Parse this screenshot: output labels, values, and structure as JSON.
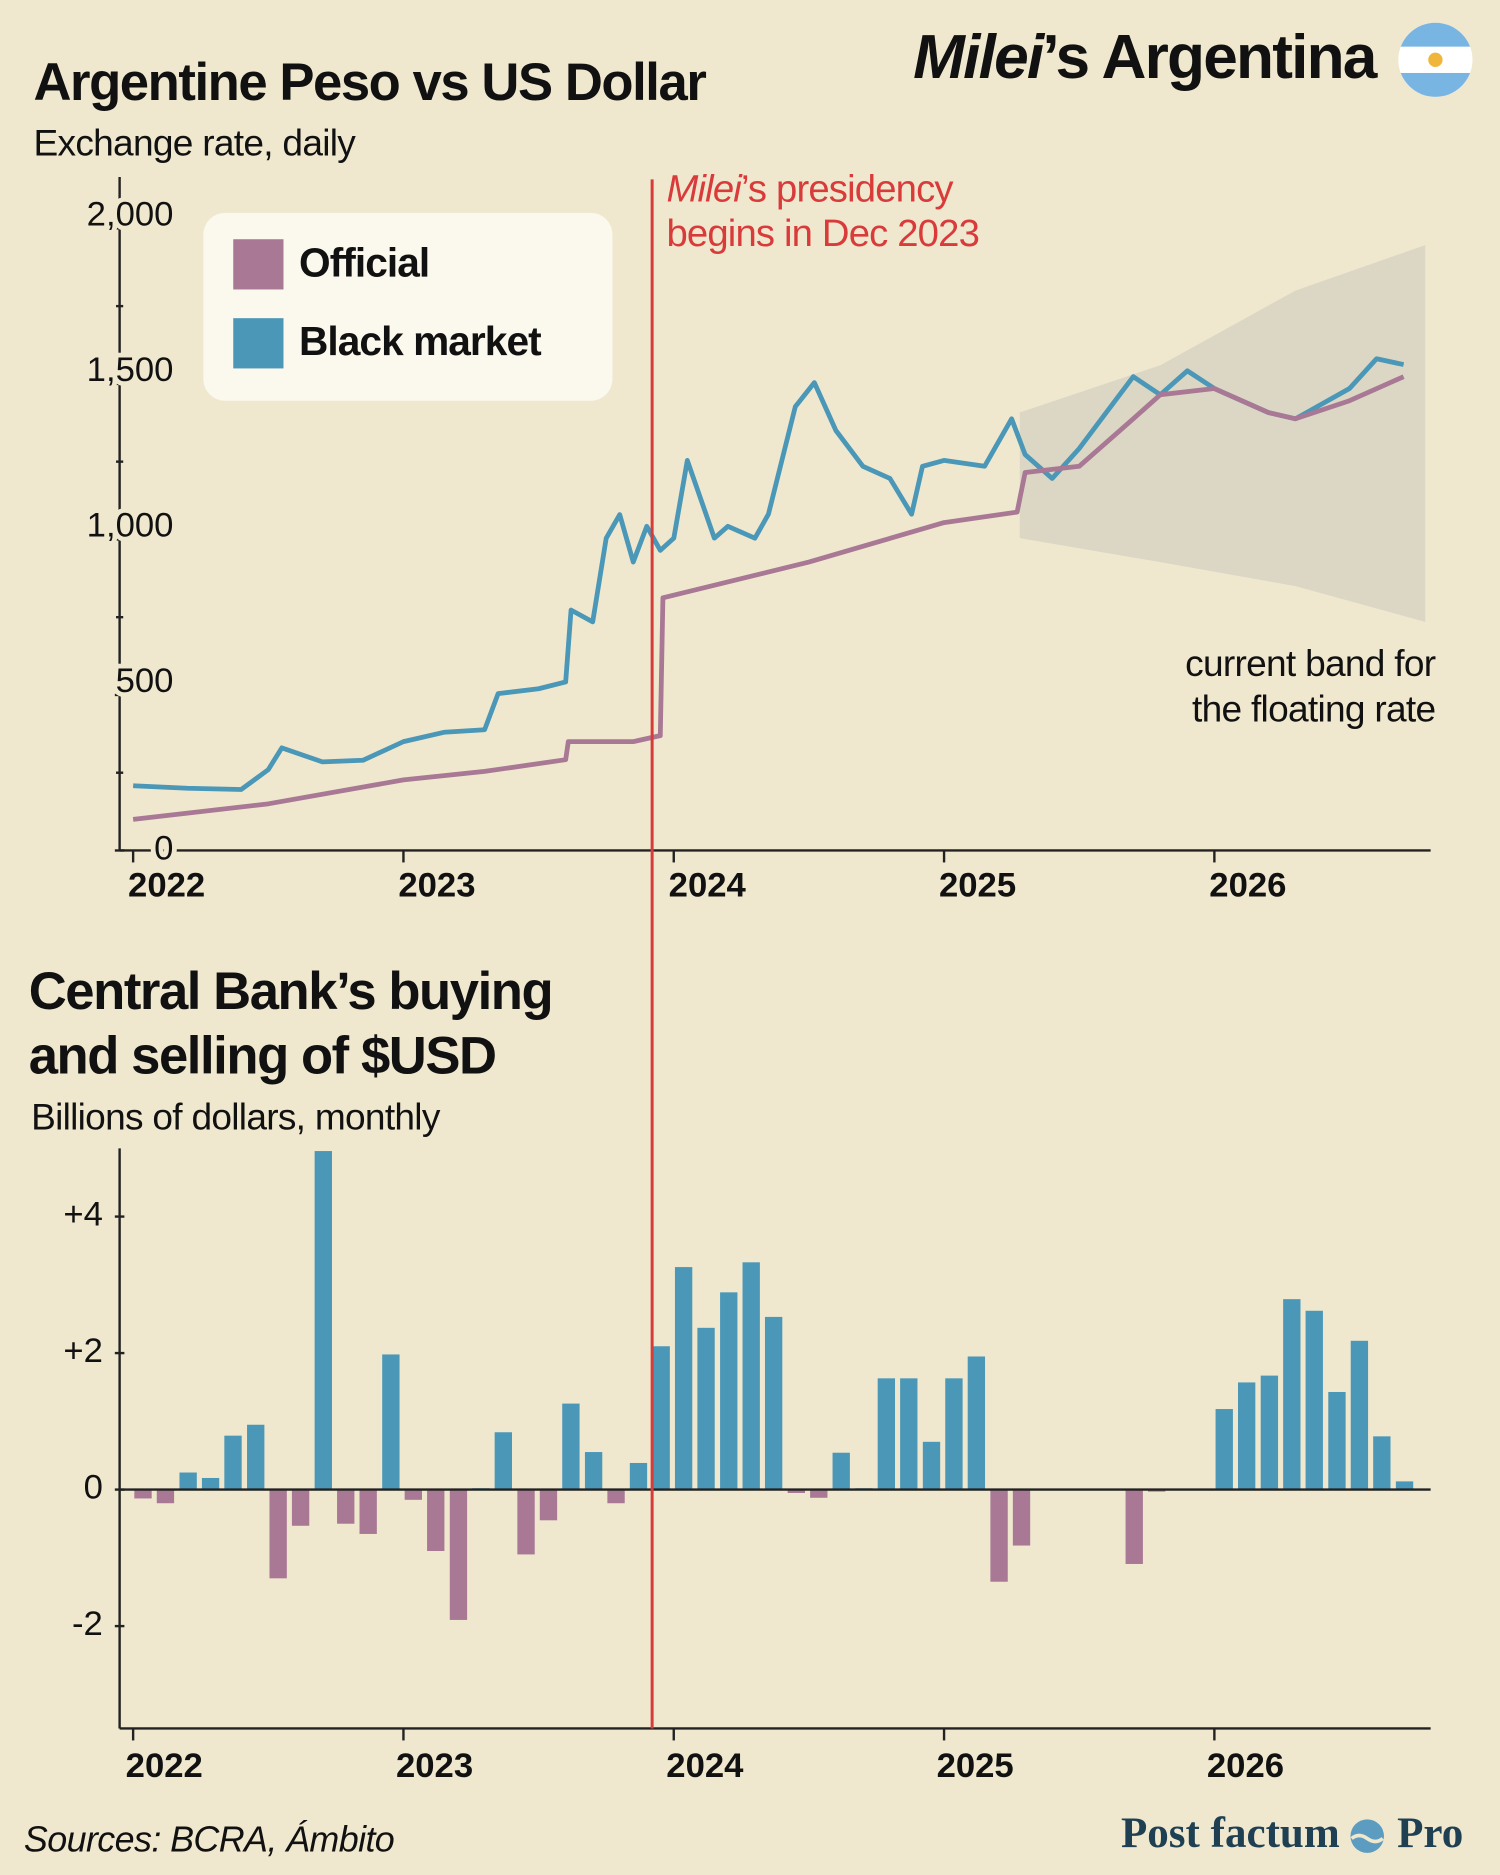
{
  "header": {
    "emphasis": "Milei",
    "rest": "’s Argentina"
  },
  "annotation": {
    "x": 2023.92,
    "emphasis": "Milei",
    "line1": "’s presidency",
    "line2": "begins in Dec 2023",
    "color": "#d93b3b"
  },
  "chart_data": [
    {
      "type": "line",
      "title": "Argentine Peso vs US Dollar",
      "subtitle": "Exchange rate, daily",
      "xlim": [
        2021.95,
        2026.8
      ],
      "xticks": [
        2022,
        2023,
        2024,
        2025,
        2026
      ],
      "ylim": [
        0,
        2165
      ],
      "yticks": [
        0,
        500,
        {
          "value": 1000,
          "label": "1,000"
        },
        {
          "value": 1500,
          "label": "1,500"
        },
        {
          "value": 2000,
          "label": "2,000"
        }
      ],
      "yticks_minor": [
        250,
        750,
        1250,
        1750
      ],
      "legend": "top-left",
      "series": [
        {
          "name": "Official",
          "color": "#a87895",
          "x": [
            2022.0,
            2022.5,
            2023.0,
            2023.3,
            2023.6,
            2023.61,
            2023.85,
            2023.95,
            2023.96,
            2024.5,
            2025.0,
            2025.27,
            2025.3,
            2025.5,
            2025.7,
            2025.8,
            2026.0,
            2026.2,
            2026.3,
            2026.5,
            2026.7
          ],
          "values": [
            100,
            150,
            227,
            254,
            292,
            350,
            350,
            369,
            812,
            927,
            1054,
            1088,
            1215,
            1235,
            1388,
            1465,
            1485,
            1408,
            1388,
            1446,
            1523
          ]
        },
        {
          "name": "Black market",
          "color": "#4a97b8",
          "x": [
            2022.0,
            2022.2,
            2022.4,
            2022.5,
            2022.55,
            2022.7,
            2022.85,
            2023.0,
            2023.15,
            2023.3,
            2023.35,
            2023.5,
            2023.6,
            2023.62,
            2023.7,
            2023.75,
            2023.8,
            2023.85,
            2023.9,
            2023.95,
            2024.0,
            2024.05,
            2024.15,
            2024.2,
            2024.3,
            2024.35,
            2024.45,
            2024.52,
            2024.6,
            2024.7,
            2024.8,
            2024.88,
            2024.92,
            2025.0,
            2025.15,
            2025.25,
            2025.3,
            2025.4,
            2025.5,
            2025.6,
            2025.7,
            2025.8,
            2025.9,
            2026.0,
            2026.2,
            2026.3,
            2026.5,
            2026.6,
            2026.7
          ],
          "values": [
            208,
            200,
            196,
            260,
            330,
            285,
            290,
            350,
            380,
            388,
            504,
            520,
            542,
            773,
            735,
            1004,
            1080,
            927,
            1042,
            965,
            1004,
            1254,
            1004,
            1042,
            1004,
            1081,
            1427,
            1504,
            1350,
            1235,
            1196,
            1081,
            1235,
            1254,
            1235,
            1388,
            1273,
            1196,
            1292,
            1408,
            1523,
            1465,
            1542,
            1485,
            1408,
            1388,
            1485,
            1581,
            1562
          ]
        }
      ],
      "band": {
        "label_lines": [
          "current band for",
          "the floating rate"
        ],
        "color": "#d7d3c2",
        "x": [
          2025.28,
          2025.8,
          2026.3,
          2026.78
        ],
        "lower": [
          1004,
          927,
          850,
          735
        ],
        "upper": [
          1408,
          1560,
          1800,
          1946
        ]
      }
    },
    {
      "type": "bar",
      "title_lines": [
        "Central Bank’s buying",
        "and selling of $USD"
      ],
      "subtitle": "Billions of dollars, monthly",
      "xlim": [
        2021.95,
        2026.8
      ],
      "xticks": [
        2022,
        2023,
        2024,
        2025,
        2026
      ],
      "ylim": [
        -3.5,
        5.0
      ],
      "yticks": [
        -2,
        0,
        {
          "value": 2,
          "label": "+2"
        },
        {
          "value": 4,
          "label": "+4"
        }
      ],
      "positive_color": "#4a97b8",
      "negative_color": "#a87895",
      "x": [
        2022.0,
        2022.083,
        2022.167,
        2022.25,
        2022.333,
        2022.417,
        2022.5,
        2022.583,
        2022.667,
        2022.75,
        2022.833,
        2022.917,
        2023.0,
        2023.083,
        2023.167,
        2023.25,
        2023.333,
        2023.417,
        2023.5,
        2023.583,
        2023.667,
        2023.75,
        2023.833,
        2023.917,
        2024.0,
        2024.083,
        2024.167,
        2024.25,
        2024.333,
        2024.417,
        2024.5,
        2024.583,
        2024.667,
        2024.75,
        2024.833,
        2024.917,
        2025.0,
        2025.083,
        2025.167,
        2025.25,
        2025.333,
        2025.417,
        2025.5,
        2025.583,
        2025.667,
        2025.75,
        2025.833,
        2025.917,
        2026.0,
        2026.083,
        2026.167,
        2026.25,
        2026.333,
        2026.417,
        2026.5,
        2026.583,
        2026.667
      ],
      "values": [
        -0.13,
        -0.2,
        0.25,
        0.17,
        0.79,
        0.95,
        -1.3,
        -0.53,
        4.96,
        -0.5,
        -0.65,
        1.98,
        -0.15,
        -0.9,
        -1.91,
        0.02,
        0.84,
        -0.95,
        -0.45,
        1.26,
        0.55,
        -0.2,
        0.39,
        2.1,
        3.26,
        2.37,
        2.89,
        3.33,
        2.53,
        -0.05,
        -0.12,
        0.54,
        0.02,
        1.63,
        1.63,
        0.7,
        1.63,
        1.95,
        -1.35,
        -0.82,
        0,
        0,
        0,
        0,
        -1.09,
        -0.03,
        0,
        0,
        1.18,
        1.57,
        1.67,
        2.79,
        2.62,
        1.43,
        2.18,
        0.78,
        0.12
      ]
    }
  ],
  "footer": {
    "source": "Sources: BCRA, Ámbito",
    "brand": "Post factum",
    "brand_suffix": "Pro"
  }
}
